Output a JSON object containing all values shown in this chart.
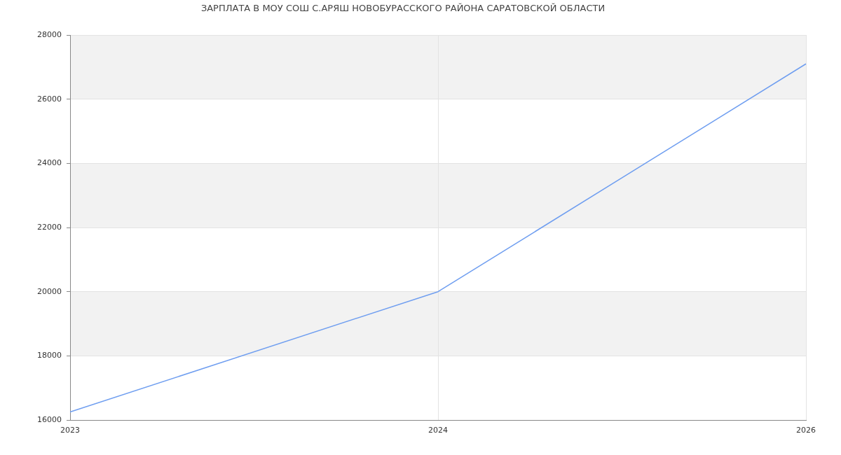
{
  "chart_data": {
    "type": "line",
    "title": "ЗАРПЛАТА В МОУ СОШ С.АРЯШ НОВОБУРАССКОГО РАЙОНА САРАТОВСКОЙ ОБЛАСТИ",
    "categories": [
      "2023",
      "2024",
      "2026"
    ],
    "values": [
      16250,
      20000,
      27100
    ],
    "color": "#6f9ef0",
    "ylim": [
      16000,
      28000
    ],
    "yticks": [
      16000,
      18000,
      20000,
      22000,
      24000,
      26000,
      28000
    ],
    "grid": true,
    "bands": [
      {
        "axis": "y",
        "from": 18000,
        "to": 20000,
        "color": "#f2f2f2"
      },
      {
        "axis": "y",
        "from": 22000,
        "to": 24000,
        "color": "#f2f2f2"
      },
      {
        "axis": "y",
        "from": 26000,
        "to": 28000,
        "color": "#f2f2f2"
      }
    ]
  }
}
